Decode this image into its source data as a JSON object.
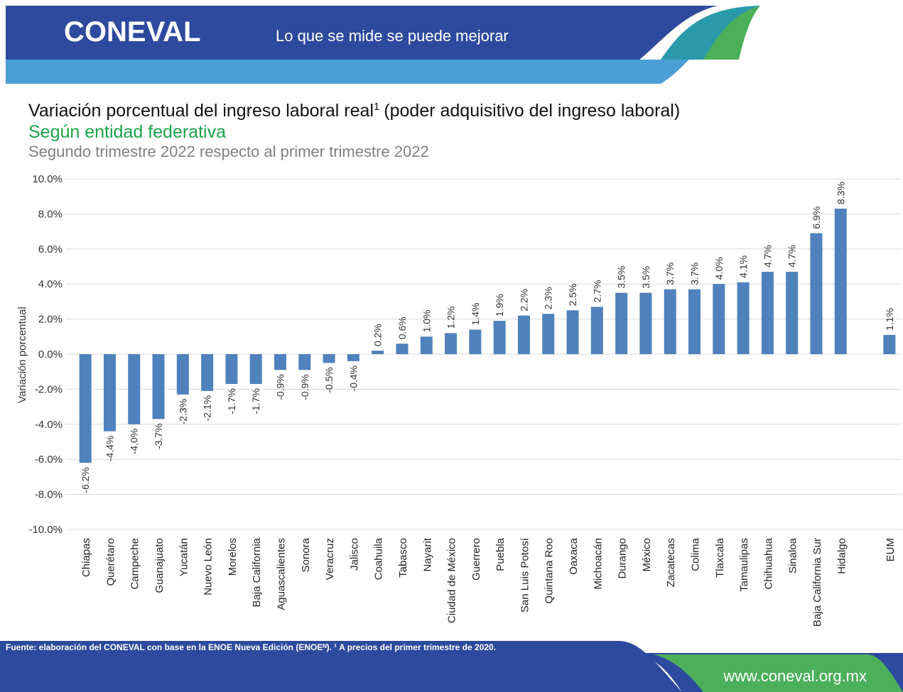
{
  "header": {
    "logo": "CONEVAL",
    "tagline": "Lo que se mide se puede mejorar"
  },
  "chart_data": {
    "type": "bar",
    "title": "Variación porcentual del ingreso laboral real",
    "title_note": "1",
    "title_rest": "(poder adquisitivo del ingreso laboral)",
    "subtitle": "Según entidad federativa",
    "subtitle2": "Segundo trimestre 2022 respecto al primer trimestre 2022",
    "y_label": "Variación porcentual",
    "color": "#4f81bd",
    "grid": true,
    "categories": [
      "Chiapas",
      "Querétaro",
      "Campeche",
      "Guanajuato",
      "Yucatán",
      "Nuevo León",
      "Morelos",
      "Baja California",
      "Aguascalientes",
      "Sonora",
      "Veracruz",
      "Jalisco",
      "Coahuila",
      "Tabasco",
      "Nayarit",
      "Ciudad de México",
      "Guerrero",
      "Puebla",
      "San Luis Potosí",
      "Quintana Roo",
      "Oaxaca",
      "Michoacán",
      "Durango",
      "México",
      "Zacatecas",
      "Colima",
      "Tlaxcala",
      "Tamaulipas",
      "Chihuahua",
      "Sinaloa",
      "Baja California Sur",
      "Hidalgo",
      null,
      "EUM"
    ],
    "values": [
      -6.2,
      -4.4,
      -4.0,
      -3.7,
      -2.3,
      -2.1,
      -1.7,
      -1.7,
      -0.9,
      -0.9,
      -0.5,
      -0.4,
      0.2,
      0.6,
      1.0,
      1.2,
      1.4,
      1.9,
      2.2,
      2.3,
      2.5,
      2.7,
      3.5,
      3.5,
      3.7,
      3.7,
      4.0,
      4.1,
      4.7,
      4.7,
      6.9,
      8.3,
      null,
      1.1
    ],
    "value_labels": [
      "-6.2%",
      "-4.4%",
      "-4.0%",
      "-3.7%",
      "-2.3%",
      "-2.1%",
      "-1.7%",
      "-1.7%",
      "-0.9%",
      "-0.9%",
      "-0.5%",
      "-0.4%",
      "0.2%",
      "0.6%",
      "1.0%",
      "1.2%",
      "1.4%",
      "1.9%",
      "2.2%",
      "2.3%",
      "2.5%",
      "2.7%",
      "3.5%",
      "3.5%",
      "3.7%",
      "3.7%",
      "4.0%",
      "4.1%",
      "4.7%",
      "4.7%",
      "6.9%",
      "8.3%",
      null,
      "1.1%"
    ],
    "ylim": [
      -10,
      10
    ],
    "yticks": [
      {
        "value": -10,
        "label": "-10.0%"
      },
      {
        "value": -8,
        "label": "-8.0%"
      },
      {
        "value": -6,
        "label": "-6.0%"
      },
      {
        "value": -4,
        "label": "-4.0%"
      },
      {
        "value": -2,
        "label": "-2.0%"
      },
      {
        "value": 0,
        "label": "0.0%"
      },
      {
        "value": 2,
        "label": "2.0%"
      },
      {
        "value": 4,
        "label": "4.0%"
      },
      {
        "value": 6,
        "label": "6.0%"
      },
      {
        "value": 8,
        "label": "8.0%"
      },
      {
        "value": 10,
        "label": "10.0%"
      }
    ]
  },
  "footer": {
    "source": "Fuente: elaboración del CONEVAL con base en la ENOE Nueva Edición (ENOEᴺ). ¹ A precios del primer trimestre de 2020.",
    "url": "www.coneval.org.mx"
  }
}
